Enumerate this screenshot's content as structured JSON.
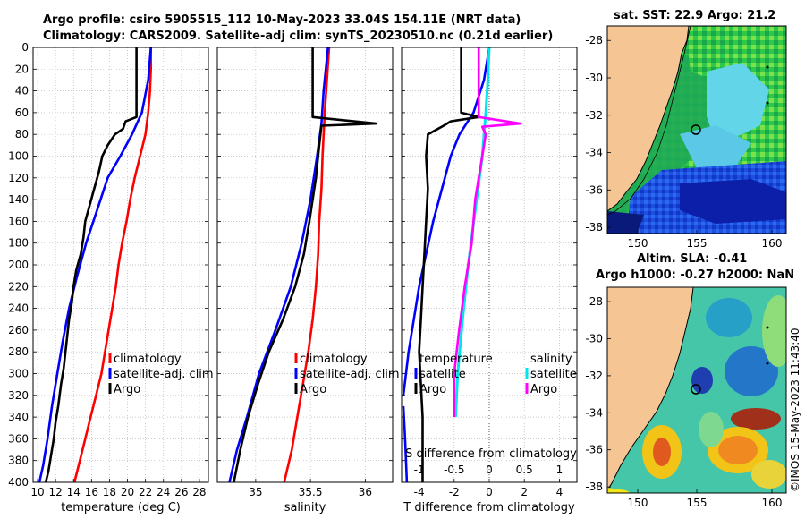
{
  "header": {
    "title_line1": "Argo profile: csiro 5905515_112 10-May-2023 33.04S 154.11E (NRT data)",
    "title_line2": "Climatology: CARS2009. Satellite-adj clim: synTS_20230510.nc (0.21d earlier)"
  },
  "colors": {
    "climatology": "#ff0000",
    "satellite": "#0000ff",
    "argo": "#000000",
    "salinity_satellite": "#00e5ee",
    "salinity_argo": "#ff00ff",
    "land": "#f6c594"
  },
  "depth_ticks": [
    "0",
    "20",
    "40",
    "60",
    "80",
    "100",
    "120",
    "140",
    "160",
    "180",
    "200",
    "220",
    "240",
    "260",
    "280",
    "300",
    "320",
    "340",
    "360",
    "380",
    "400"
  ],
  "chart_data": [
    {
      "type": "line",
      "id": "temperature",
      "xlabel": "temperature (deg C)",
      "xlim": [
        9.5,
        29
      ],
      "xticks": [
        10,
        12,
        14,
        16,
        18,
        20,
        22,
        24,
        26,
        28
      ],
      "ylim": [
        0,
        400
      ],
      "y_reversed": true,
      "legend": [
        "climatology",
        "satellite-adj. clim",
        "Argo"
      ],
      "series": [
        {
          "name": "climatology",
          "color": "red",
          "points": [
            [
              22.6,
              0
            ],
            [
              22.6,
              20
            ],
            [
              22.5,
              40
            ],
            [
              22.3,
              60
            ],
            [
              22.0,
              80
            ],
            [
              21.4,
              100
            ],
            [
              20.8,
              120
            ],
            [
              20.3,
              140
            ],
            [
              19.9,
              160
            ],
            [
              19.4,
              180
            ],
            [
              19.0,
              200
            ],
            [
              18.7,
              220
            ],
            [
              18.3,
              240
            ],
            [
              17.9,
              260
            ],
            [
              17.5,
              280
            ],
            [
              17.1,
              300
            ],
            [
              16.5,
              320
            ],
            [
              15.9,
              340
            ],
            [
              15.3,
              360
            ],
            [
              14.7,
              380
            ],
            [
              14.1,
              400
            ]
          ]
        },
        {
          "name": "satellite-adj. clim",
          "color": "blue",
          "points": [
            [
              22.6,
              0
            ],
            [
              22.3,
              30
            ],
            [
              21.6,
              60
            ],
            [
              20.5,
              80
            ],
            [
              19.2,
              100
            ],
            [
              17.8,
              120
            ],
            [
              16.6,
              150
            ],
            [
              15.4,
              180
            ],
            [
              14.4,
              210
            ],
            [
              13.5,
              240
            ],
            [
              12.8,
              270
            ],
            [
              12.2,
              300
            ],
            [
              11.6,
              330
            ],
            [
              11.1,
              360
            ],
            [
              10.6,
              385
            ],
            [
              10.2,
              400
            ]
          ]
        },
        {
          "name": "Argo",
          "color": "black",
          "points": [
            [
              21.0,
              0
            ],
            [
              21.0,
              64
            ],
            [
              19.8,
              68
            ],
            [
              19.5,
              75
            ],
            [
              18.6,
              80
            ],
            [
              17.8,
              90
            ],
            [
              17.2,
              100
            ],
            [
              16.8,
              115
            ],
            [
              16.3,
              130
            ],
            [
              15.8,
              145
            ],
            [
              15.3,
              160
            ],
            [
              15.1,
              175
            ],
            [
              14.8,
              190
            ],
            [
              14.3,
              205
            ],
            [
              14.0,
              220
            ],
            [
              13.8,
              235
            ],
            [
              13.5,
              250
            ],
            [
              13.3,
              265
            ],
            [
              13.1,
              280
            ],
            [
              12.9,
              295
            ],
            [
              12.6,
              310
            ],
            [
              12.3,
              330
            ],
            [
              12.0,
              345
            ],
            [
              11.8,
              360
            ],
            [
              11.5,
              375
            ],
            [
              11.2,
              390
            ],
            [
              10.9,
              400
            ]
          ]
        }
      ]
    },
    {
      "type": "line",
      "id": "salinity",
      "xlabel": "salinity",
      "xlim": [
        34.65,
        36.25
      ],
      "xticks": [
        35,
        35.5,
        36
      ],
      "ylim": [
        0,
        400
      ],
      "y_reversed": true,
      "legend": [
        "climatology",
        "satellite-adj. clim",
        "Argo"
      ],
      "series": [
        {
          "name": "climatology",
          "color": "red",
          "points": [
            [
              35.67,
              0
            ],
            [
              35.65,
              30
            ],
            [
              35.63,
              60
            ],
            [
              35.62,
              80
            ],
            [
              35.61,
              100
            ],
            [
              35.6,
              130
            ],
            [
              35.58,
              160
            ],
            [
              35.57,
              190
            ],
            [
              35.55,
              220
            ],
            [
              35.52,
              250
            ],
            [
              35.48,
              280
            ],
            [
              35.43,
              310
            ],
            [
              35.38,
              340
            ],
            [
              35.33,
              370
            ],
            [
              35.26,
              400
            ]
          ]
        },
        {
          "name": "satellite-adj. clim",
          "color": "blue",
          "points": [
            [
              35.66,
              0
            ],
            [
              35.62,
              40
            ],
            [
              35.6,
              70
            ],
            [
              35.56,
              100
            ],
            [
              35.5,
              140
            ],
            [
              35.42,
              180
            ],
            [
              35.32,
              220
            ],
            [
              35.18,
              260
            ],
            [
              35.03,
              300
            ],
            [
              34.92,
              340
            ],
            [
              34.83,
              370
            ],
            [
              34.76,
              400
            ]
          ]
        },
        {
          "name": "Argo",
          "color": "black",
          "points": [
            [
              35.52,
              0
            ],
            [
              35.52,
              64
            ],
            [
              36.1,
              70
            ],
            [
              35.6,
              72
            ],
            [
              35.58,
              90
            ],
            [
              35.55,
              120
            ],
            [
              35.49,
              160
            ],
            [
              35.44,
              190
            ],
            [
              35.36,
              220
            ],
            [
              35.25,
              250
            ],
            [
              35.12,
              280
            ],
            [
              35.02,
              310
            ],
            [
              34.93,
              340
            ],
            [
              34.86,
              370
            ],
            [
              34.8,
              400
            ]
          ]
        }
      ]
    },
    {
      "type": "line",
      "id": "difference",
      "xlabel": "T difference from climatology",
      "xlabel_top": "S difference from climatology",
      "xlim": [
        -5,
        5
      ],
      "xticks": [
        -4,
        -2,
        0,
        2,
        4
      ],
      "xlim_top": [
        -1.25,
        1.25
      ],
      "xticks_top": [
        "-1",
        "-0.5",
        "0",
        "0.5",
        "1"
      ],
      "ylim": [
        0,
        400
      ],
      "y_reversed": true,
      "legend": {
        "temperature": [
          "temperature",
          "satellite",
          "Argo"
        ],
        "salinity": [
          "salinity",
          "satellite",
          "Argo"
        ]
      },
      "series": [
        {
          "name": "T satellite",
          "color": "blue",
          "points": [
            [
              0.0,
              0
            ],
            [
              -0.3,
              30
            ],
            [
              -0.9,
              60
            ],
            [
              -1.7,
              80
            ],
            [
              -2.2,
              100
            ],
            [
              -2.7,
              130
            ],
            [
              -3.2,
              160
            ],
            [
              -3.6,
              190
            ],
            [
              -4.0,
              220
            ],
            [
              -4.3,
              250
            ],
            [
              -4.6,
              280
            ],
            [
              -4.9,
              320
            ]
          ]
        },
        {
          "name": "T satellite deep",
          "color": "blue",
          "points": [
            [
              -4.9,
              330
            ],
            [
              -4.8,
              360
            ],
            [
              -4.7,
              400
            ]
          ]
        },
        {
          "name": "T Argo",
          "color": "black",
          "points": [
            [
              -1.6,
              0
            ],
            [
              -1.6,
              60
            ],
            [
              -0.6,
              64
            ],
            [
              -2.2,
              68
            ],
            [
              -2.6,
              72
            ],
            [
              -3.5,
              80
            ],
            [
              -3.6,
              100
            ],
            [
              -3.5,
              130
            ],
            [
              -3.6,
              160
            ],
            [
              -3.7,
              190
            ],
            [
              -3.8,
              220
            ],
            [
              -3.9,
              250
            ],
            [
              -4.0,
              280
            ],
            [
              -3.9,
              310
            ],
            [
              -3.8,
              340
            ],
            [
              -3.8,
              370
            ],
            [
              -3.8,
              400
            ]
          ]
        },
        {
          "name": "S satellite",
          "color": "cyan",
          "points": [
            [
              0.0,
              0
            ],
            [
              -0.02,
              30
            ],
            [
              -0.05,
              60
            ],
            [
              -0.1,
              100
            ],
            [
              -0.2,
              150
            ],
            [
              -0.3,
              200
            ],
            [
              -0.38,
              250
            ],
            [
              -0.45,
              300
            ],
            [
              -0.48,
              340
            ]
          ]
        },
        {
          "name": "S Argo",
          "color": "magenta",
          "points": [
            [
              -0.15,
              0
            ],
            [
              -0.15,
              64
            ],
            [
              0.45,
              70
            ],
            [
              -0.1,
              73
            ],
            [
              -0.05,
              80
            ],
            [
              -0.1,
              100
            ],
            [
              -0.2,
              140
            ],
            [
              -0.25,
              180
            ],
            [
              -0.35,
              220
            ],
            [
              -0.43,
              260
            ],
            [
              -0.5,
              300
            ],
            [
              -0.5,
              340
            ]
          ]
        }
      ]
    },
    {
      "type": "heatmap",
      "id": "sst_map",
      "title": "sat. SST: 22.9 Argo: 21.2",
      "xticks": [
        "150",
        "155",
        "160"
      ],
      "yticks": [
        "-28",
        "-30",
        "-32",
        "-34",
        "-36",
        "-38"
      ]
    },
    {
      "type": "heatmap",
      "id": "sla_map",
      "title_line1": "Altim. SLA: -0.41",
      "title_line2": "Argo h1000: -0.27 h2000: NaN",
      "xticks": [
        "150",
        "155",
        "160"
      ],
      "yticks": [
        "-28",
        "-30",
        "-32",
        "-34",
        "-36",
        "-38"
      ]
    }
  ],
  "stamp": "©IMOS 15-May-2023 11:43:40"
}
